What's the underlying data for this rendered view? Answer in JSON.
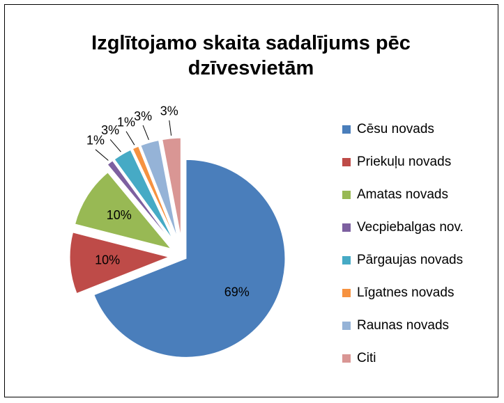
{
  "chart_data": {
    "type": "pie",
    "title": "Izglītojamo skaita sadalījums pēc dzīvesvietām",
    "categories": [
      "Cēsu novads",
      "Priekuļu novads",
      "Amatas novads",
      "Vecpiebalgas nov.",
      "Pārgaujas novads",
      "Līgatnes novads",
      "Raunas novads",
      "Citi"
    ],
    "values": [
      69,
      10,
      10,
      1,
      3,
      1,
      3,
      3
    ],
    "value_labels": [
      "69%",
      "10%",
      "10%",
      "1%",
      "3%",
      "1%",
      "3%",
      "3%"
    ],
    "colors": [
      "#4a7ebb",
      "#be4b48",
      "#98b954",
      "#7d60a0",
      "#46aac5",
      "#f69240",
      "#95b3d7",
      "#d99694"
    ],
    "legend": "right"
  }
}
